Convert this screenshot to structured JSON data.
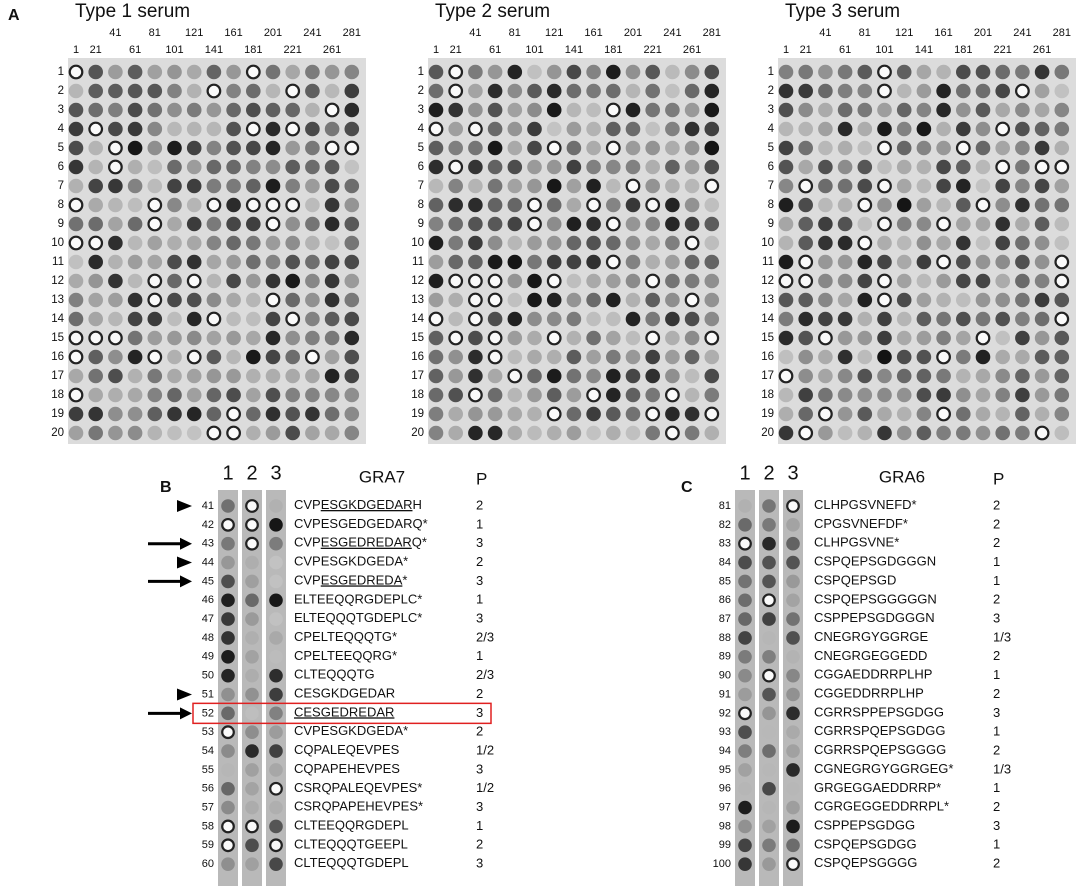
{
  "panel_a": {
    "label": "A",
    "blots": [
      {
        "title": "Type 1 serum"
      },
      {
        "title": "Type 2 serum"
      },
      {
        "title": "Type 3 serum"
      }
    ],
    "columns": [
      "1",
      "21",
      "41",
      "61",
      "81",
      "101",
      "121",
      "141",
      "161",
      "181",
      "201",
      "221",
      "241",
      "261",
      "281"
    ],
    "rows": [
      "1",
      "2",
      "3",
      "4",
      "5",
      "6",
      "7",
      "8",
      "9",
      "10",
      "11",
      "12",
      "13",
      "14",
      "15",
      "16",
      "17",
      "18",
      "19",
      "20"
    ]
  },
  "panel_b": {
    "label": "B",
    "lanes": [
      "1",
      "2",
      "3"
    ],
    "protein": "GRA7",
    "p_header": "P",
    "rows": [
      {
        "id": "41",
        "sequence": [
          {
            "text": "CVP"
          },
          {
            "text": "ESGKDGEDAR",
            "underline": true
          },
          {
            "text": "H"
          }
        ],
        "p": "2",
        "marker": "arrowhead"
      },
      {
        "id": "42",
        "sequence": [
          {
            "text": "CVPESGEDGEDARQ*"
          }
        ],
        "p": "1"
      },
      {
        "id": "43",
        "sequence": [
          {
            "text": "CVP"
          },
          {
            "text": "ESGEDREDAR",
            "underline": true
          },
          {
            "text": "Q*"
          }
        ],
        "p": "3",
        "marker": "arrow"
      },
      {
        "id": "44",
        "sequence": [
          {
            "text": "CVPESGKDGEDA*"
          }
        ],
        "p": "2",
        "marker": "arrowhead"
      },
      {
        "id": "45",
        "sequence": [
          {
            "text": "CVP"
          },
          {
            "text": "ESGEDREDA",
            "underline": true
          },
          {
            "text": "*"
          }
        ],
        "p": "3",
        "marker": "arrow"
      },
      {
        "id": "46",
        "sequence": [
          {
            "text": "ELTEEQQRGDEPLC*"
          }
        ],
        "p": "1"
      },
      {
        "id": "47",
        "sequence": [
          {
            "text": "ELTEQQQTGDEPLC*"
          }
        ],
        "p": "3"
      },
      {
        "id": "48",
        "sequence": [
          {
            "text": "CPELTEQQQTG*"
          }
        ],
        "p": "2/3"
      },
      {
        "id": "49",
        "sequence": [
          {
            "text": "CPELTEEQQRG*"
          }
        ],
        "p": "1"
      },
      {
        "id": "50",
        "sequence": [
          {
            "text": "CLTEQQQTG"
          }
        ],
        "p": "2/3"
      },
      {
        "id": "51",
        "sequence": [
          {
            "text": "CESGKDGEDAR"
          }
        ],
        "p": "2",
        "marker": "arrowhead"
      },
      {
        "id": "52",
        "sequence": [
          {
            "text": "CESGEDREDAR",
            "underline": true
          }
        ],
        "p": "3",
        "marker": "arrow",
        "highlight": true
      },
      {
        "id": "53",
        "sequence": [
          {
            "text": "CVPESGKDGEDA*"
          }
        ],
        "p": "2"
      },
      {
        "id": "54",
        "sequence": [
          {
            "text": "CQPALEQEVPES"
          }
        ],
        "p": "1/2"
      },
      {
        "id": "55",
        "sequence": [
          {
            "text": "CQPAPEHEVPES"
          }
        ],
        "p": "3"
      },
      {
        "id": "56",
        "sequence": [
          {
            "text": "CSRQPALEQEVPES*"
          }
        ],
        "p": "1/2"
      },
      {
        "id": "57",
        "sequence": [
          {
            "text": "CSRQPAPEHEVPES*"
          }
        ],
        "p": "3"
      },
      {
        "id": "58",
        "sequence": [
          {
            "text": "CLTEEQQRGDEPL"
          }
        ],
        "p": "1"
      },
      {
        "id": "59",
        "sequence": [
          {
            "text": "CLTEQQQTGEEPL"
          }
        ],
        "p": "2"
      },
      {
        "id": "60",
        "sequence": [
          {
            "text": "CLTEQQQTGDEPL"
          }
        ],
        "p": "3"
      }
    ]
  },
  "panel_c": {
    "label": "C",
    "lanes": [
      "1",
      "2",
      "3"
    ],
    "protein": "GRA6",
    "p_header": "P",
    "rows": [
      {
        "id": "81",
        "sequence": [
          {
            "text": "CLHPGSVNEFD*"
          }
        ],
        "p": "2"
      },
      {
        "id": "82",
        "sequence": [
          {
            "text": "CPGSVNEFDF*"
          }
        ],
        "p": "2"
      },
      {
        "id": "83",
        "sequence": [
          {
            "text": "CLHPGSVNE*"
          }
        ],
        "p": "2"
      },
      {
        "id": "84",
        "sequence": [
          {
            "text": "CSPQEPSGDGGGN"
          }
        ],
        "p": "1"
      },
      {
        "id": "85",
        "sequence": [
          {
            "text": "CSPQEPSGD"
          }
        ],
        "p": "1"
      },
      {
        "id": "86",
        "sequence": [
          {
            "text": "CSPQEPSGGGGGN"
          }
        ],
        "p": "2"
      },
      {
        "id": "87",
        "sequence": [
          {
            "text": "CSPPEPSGDGGGN"
          }
        ],
        "p": "3"
      },
      {
        "id": "88",
        "sequence": [
          {
            "text": "CNEGRGYGGRGE"
          }
        ],
        "p": "1/3"
      },
      {
        "id": "89",
        "sequence": [
          {
            "text": "CNEGRGEGGEDD"
          }
        ],
        "p": "2"
      },
      {
        "id": "90",
        "sequence": [
          {
            "text": "CGGAEDDRRPLHP"
          }
        ],
        "p": "1"
      },
      {
        "id": "91",
        "sequence": [
          {
            "text": "CGGEDDRRPLHP"
          }
        ],
        "p": "2"
      },
      {
        "id": "92",
        "sequence": [
          {
            "text": "CGRRSPPEPSGDGG"
          }
        ],
        "p": "3"
      },
      {
        "id": "93",
        "sequence": [
          {
            "text": "CGRRSPQEPSGDGG"
          }
        ],
        "p": "1"
      },
      {
        "id": "94",
        "sequence": [
          {
            "text": "CGRRSPQEPSGGGG"
          }
        ],
        "p": "2"
      },
      {
        "id": "95",
        "sequence": [
          {
            "text": "CGNEGRGYGGRGEG*"
          }
        ],
        "p": "1/3"
      },
      {
        "id": "96",
        "sequence": [
          {
            "text": "GRGEGGAEDDRRP*"
          }
        ],
        "p": "1"
      },
      {
        "id": "97",
        "sequence": [
          {
            "text": "CGRGEGGEDDRRPL*"
          }
        ],
        "p": "2"
      },
      {
        "id": "98",
        "sequence": [
          {
            "text": "CSPPEPSGDGG"
          }
        ],
        "p": "3"
      },
      {
        "id": "99",
        "sequence": [
          {
            "text": "CSPQEPSGDGG"
          }
        ],
        "p": "1"
      },
      {
        "id": "100",
        "sequence": [
          {
            "text": "CSPQEPSGGGG"
          }
        ],
        "p": "2"
      }
    ]
  }
}
